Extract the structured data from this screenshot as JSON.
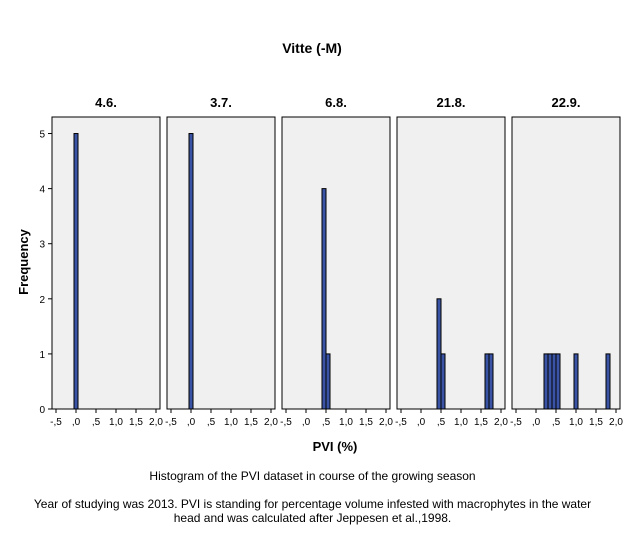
{
  "chart_data": {
    "type": "bar",
    "title": "Vitte (-M)",
    "xlabel": "PVI (%)",
    "ylabel": "Frequency",
    "xlim": [
      -0.6,
      2.1
    ],
    "ylim": [
      0,
      5.3
    ],
    "x_ticks": [
      -0.5,
      0,
      0.5,
      1.0,
      1.5,
      2.0
    ],
    "x_tick_labels": [
      "-,5",
      ",0",
      ",5",
      "1,0",
      "1,5",
      "2,0"
    ],
    "y_ticks": [
      0,
      1,
      2,
      3,
      4,
      5
    ],
    "y_tick_labels": [
      "0",
      "1",
      "2",
      "3",
      "4",
      "5"
    ],
    "bin_width": 0.1,
    "bar_color": "#3a53a4",
    "panel_background": "#f0f0f0",
    "panels": [
      {
        "label": "4.6.",
        "bins": [
          {
            "x": 0.0,
            "count": 5
          }
        ]
      },
      {
        "label": "3.7.",
        "bins": [
          {
            "x": 0.0,
            "count": 5
          }
        ]
      },
      {
        "label": "6.8.",
        "bins": [
          {
            "x": 0.45,
            "count": 4
          },
          {
            "x": 0.55,
            "count": 1
          }
        ]
      },
      {
        "label": "21.8.",
        "bins": [
          {
            "x": 0.45,
            "count": 2
          },
          {
            "x": 0.55,
            "count": 1
          },
          {
            "x": 1.65,
            "count": 1
          },
          {
            "x": 1.75,
            "count": 1
          }
        ]
      },
      {
        "label": "22.9.",
        "bins": [
          {
            "x": 0.25,
            "count": 1
          },
          {
            "x": 0.35,
            "count": 1
          },
          {
            "x": 0.45,
            "count": 1
          },
          {
            "x": 0.55,
            "count": 1
          },
          {
            "x": 1.0,
            "count": 1
          },
          {
            "x": 1.8,
            "count": 1
          }
        ]
      }
    ]
  },
  "captions": {
    "title": "Histogram of the PVI dataset in course of the growing season",
    "note": "Year of studying was 2013. PVI is standing for percentage volume infested with macrophytes in the water head and was calculated after Jeppesen et al.,1998."
  }
}
